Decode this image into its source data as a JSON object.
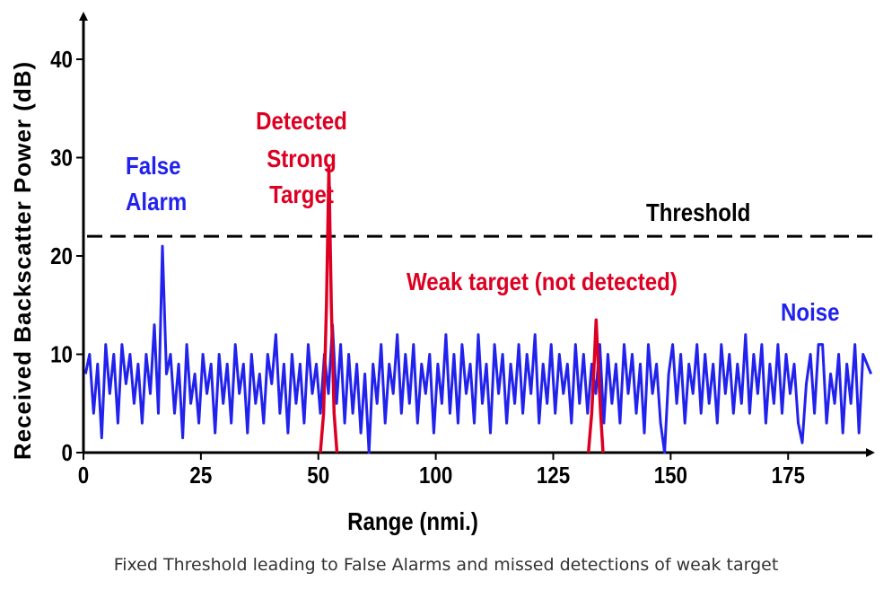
{
  "caption": "Fixed Threshold leading to False Alarms and missed detections of weak target",
  "colors": {
    "noise": "#2222ee",
    "signal": "#dd0022",
    "axis": "#000000",
    "threshold": "#000000"
  },
  "chart_data": {
    "type": "line",
    "title": "",
    "xlabel": "Range (nmi.)",
    "ylabel": "Received Backscatter Power (dB)",
    "xlim": [
      0,
      195
    ],
    "ylim": [
      0,
      44
    ],
    "x_ticks": [
      "0",
      "25",
      "50",
      "100",
      "125",
      "150",
      "175"
    ],
    "y_ticks": [
      "0",
      "10",
      "20",
      "30",
      "40"
    ],
    "threshold": {
      "value": 22,
      "label": "Threshold"
    },
    "annotations": {
      "false_alarm": [
        "False",
        "Alarm"
      ],
      "strong_target": [
        "Detected",
        "Strong",
        "Target"
      ],
      "weak_target": "Weak target (not detected)",
      "noise": "Noise"
    },
    "series": [
      {
        "name": "Noise",
        "color": "#2222ee",
        "points": [
          [
            0.5,
            8
          ],
          [
            1.5,
            10
          ],
          [
            2.5,
            4
          ],
          [
            3.5,
            9
          ],
          [
            4.5,
            1.5
          ],
          [
            5.5,
            11
          ],
          [
            6.5,
            6
          ],
          [
            7.5,
            10
          ],
          [
            8.5,
            3
          ],
          [
            9.5,
            11
          ],
          [
            10.5,
            7
          ],
          [
            11.5,
            10
          ],
          [
            12.5,
            5
          ],
          [
            13.5,
            9
          ],
          [
            14.5,
            3
          ],
          [
            15.5,
            10
          ],
          [
            16.5,
            6
          ],
          [
            17.5,
            13
          ],
          [
            18.5,
            4
          ],
          [
            19.5,
            21
          ],
          [
            20.5,
            8
          ],
          [
            21.5,
            10
          ],
          [
            22.5,
            4
          ],
          [
            23.5,
            9
          ],
          [
            24.5,
            1.5
          ],
          [
            25.5,
            11
          ],
          [
            26.5,
            5
          ],
          [
            27.5,
            8
          ],
          [
            28.5,
            3
          ],
          [
            29.5,
            10
          ],
          [
            30.5,
            6
          ],
          [
            31.5,
            9
          ],
          [
            32.5,
            2
          ],
          [
            33.5,
            10
          ],
          [
            34.5,
            5
          ],
          [
            35.5,
            9
          ],
          [
            36.5,
            3
          ],
          [
            37.5,
            11
          ],
          [
            38.5,
            6
          ],
          [
            39.5,
            9
          ],
          [
            40.5,
            2
          ],
          [
            41.5,
            10
          ],
          [
            42.5,
            5
          ],
          [
            43.5,
            8
          ],
          [
            44.5,
            3
          ],
          [
            45.5,
            10
          ],
          [
            46.5,
            7
          ],
          [
            47.5,
            12
          ],
          [
            48.5,
            4
          ],
          [
            49.5,
            9
          ],
          [
            50.5,
            2
          ],
          [
            51.5,
            10
          ],
          [
            52.5,
            5
          ],
          [
            53.5,
            9
          ],
          [
            54.5,
            3
          ],
          [
            55.5,
            11
          ],
          [
            56.5,
            6
          ],
          [
            57.5,
            9
          ],
          [
            58.5,
            4
          ],
          [
            59.5,
            10
          ],
          [
            60.5,
            6
          ],
          [
            61.5,
            13
          ],
          [
            62.5,
            5
          ],
          [
            63.5,
            11
          ],
          [
            64.5,
            3
          ],
          [
            65.5,
            10
          ],
          [
            66.5,
            4
          ],
          [
            67.5,
            9
          ],
          [
            68.5,
            2
          ],
          [
            69.5,
            8
          ],
          [
            70.5,
            0
          ],
          [
            71.5,
            9
          ],
          [
            72.5,
            5
          ],
          [
            73.5,
            11
          ],
          [
            74.5,
            3
          ],
          [
            75.5,
            9
          ],
          [
            76.5,
            6
          ],
          [
            77.5,
            12
          ],
          [
            78.5,
            4
          ],
          [
            79.5,
            10
          ],
          [
            80.5,
            5
          ],
          [
            81.5,
            11
          ],
          [
            82.5,
            3
          ],
          [
            83.5,
            9
          ],
          [
            84.5,
            6
          ],
          [
            85.5,
            10
          ],
          [
            86.5,
            2
          ],
          [
            87.5,
            9
          ],
          [
            88.5,
            5
          ],
          [
            89.5,
            12
          ],
          [
            90.5,
            4
          ],
          [
            91.5,
            10
          ],
          [
            92.5,
            3
          ],
          [
            93.5,
            11
          ],
          [
            94.5,
            6
          ],
          [
            95.5,
            9
          ],
          [
            96.5,
            3
          ],
          [
            97.5,
            12
          ],
          [
            98.5,
            5
          ],
          [
            99.5,
            9
          ],
          [
            100.5,
            2
          ],
          [
            101.5,
            11
          ],
          [
            102.5,
            6
          ],
          [
            103.5,
            10
          ],
          [
            104.5,
            3
          ],
          [
            105.5,
            9
          ],
          [
            106.5,
            5
          ],
          [
            107.5,
            11
          ],
          [
            108.5,
            4
          ],
          [
            109.5,
            10
          ],
          [
            110.5,
            6
          ],
          [
            111.5,
            12
          ],
          [
            112.5,
            3
          ],
          [
            113.5,
            9
          ],
          [
            114.5,
            5
          ],
          [
            115.5,
            11
          ],
          [
            116.5,
            4
          ],
          [
            117.5,
            10
          ],
          [
            118.5,
            6
          ],
          [
            119.5,
            9
          ],
          [
            120.5,
            3
          ],
          [
            121.5,
            11
          ],
          [
            122.5,
            5
          ],
          [
            123.5,
            10
          ],
          [
            124.5,
            4
          ],
          [
            125.5,
            9
          ],
          [
            126.5,
            6
          ],
          [
            127.5,
            11
          ],
          [
            128.5,
            3
          ],
          [
            129.5,
            10
          ],
          [
            130.5,
            5
          ],
          [
            131.5,
            9
          ],
          [
            132.5,
            3
          ],
          [
            133.5,
            11
          ],
          [
            134.5,
            6
          ],
          [
            135.5,
            10
          ],
          [
            136.5,
            4
          ],
          [
            137.5,
            9
          ],
          [
            138.5,
            2
          ],
          [
            139.5,
            11
          ],
          [
            140.5,
            6
          ],
          [
            141.5,
            9
          ],
          [
            142.5,
            3
          ],
          [
            143.5,
            0
          ],
          [
            144.5,
            8
          ],
          [
            145.5,
            11
          ],
          [
            146.5,
            5
          ],
          [
            147.5,
            10
          ],
          [
            148.5,
            3
          ],
          [
            149.5,
            9
          ],
          [
            150.5,
            6
          ],
          [
            151.5,
            11
          ],
          [
            152.5,
            4
          ],
          [
            153.5,
            10
          ],
          [
            154.5,
            5
          ],
          [
            155.5,
            9
          ],
          [
            156.5,
            3
          ],
          [
            157.5,
            11
          ],
          [
            158.5,
            6
          ],
          [
            159.5,
            10
          ],
          [
            160.5,
            4
          ],
          [
            161.5,
            9
          ],
          [
            162.5,
            5
          ],
          [
            163.5,
            12
          ],
          [
            164.5,
            4
          ],
          [
            165.5,
            10
          ],
          [
            166.5,
            6
          ],
          [
            167.5,
            11
          ],
          [
            168.5,
            3
          ],
          [
            169.5,
            9
          ],
          [
            170.5,
            5
          ],
          [
            171.5,
            11
          ],
          [
            172.5,
            4
          ],
          [
            173.5,
            10
          ],
          [
            174.5,
            6
          ],
          [
            175.5,
            9
          ],
          [
            176.5,
            3
          ],
          [
            177.5,
            1
          ],
          [
            178.5,
            7
          ],
          [
            179.5,
            10
          ],
          [
            180.5,
            4
          ],
          [
            181.5,
            11
          ],
          [
            182.5,
            11
          ],
          [
            183.5,
            3
          ],
          [
            184.5,
            8
          ],
          [
            185.5,
            5
          ],
          [
            186.5,
            10
          ],
          [
            187.5,
            2
          ],
          [
            188.5,
            9
          ],
          [
            189.5,
            5
          ],
          [
            190.5,
            11
          ],
          [
            191.5,
            2
          ],
          [
            192.5,
            10
          ],
          [
            193.5,
            9
          ],
          [
            194.5,
            8
          ]
        ]
      },
      {
        "name": "Strong Target",
        "color": "#dd0022",
        "points": [
          [
            58.5,
            0
          ],
          [
            59.3,
            4
          ],
          [
            60,
            15
          ],
          [
            60.6,
            29
          ],
          [
            61.2,
            15
          ],
          [
            61.9,
            4
          ],
          [
            62.6,
            0
          ]
        ]
      },
      {
        "name": "Weak Target",
        "color": "#dd0022",
        "points": [
          [
            124.7,
            0
          ],
          [
            125.5,
            4
          ],
          [
            126.1,
            9
          ],
          [
            126.6,
            13.5
          ],
          [
            127.1,
            9
          ],
          [
            127.7,
            4
          ],
          [
            128.3,
            0
          ]
        ]
      }
    ]
  }
}
